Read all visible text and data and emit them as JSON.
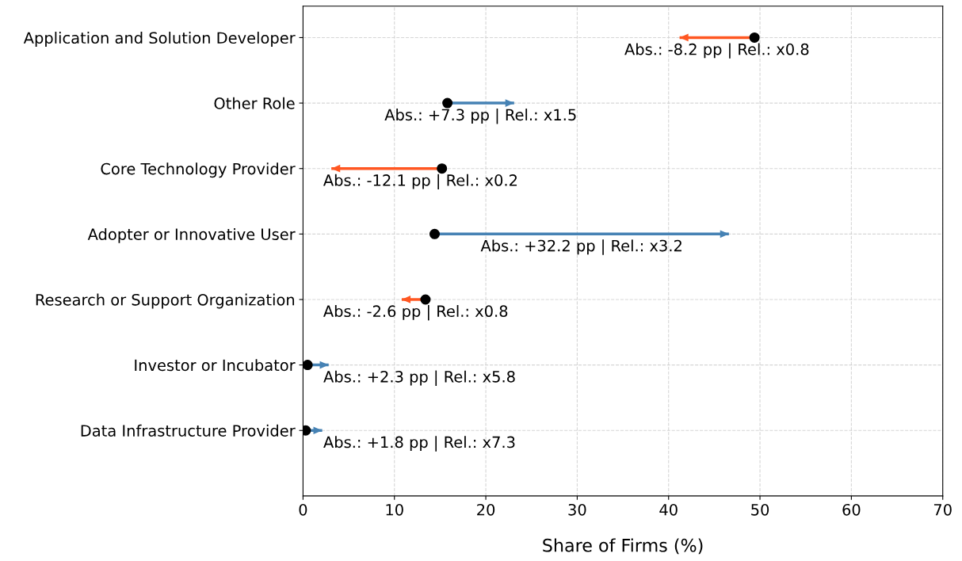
{
  "chart_data": {
    "type": "bar",
    "orientation": "horizontal",
    "xlabel": "Share of Firms (%)",
    "categories": [
      "Application and Solution Developer",
      "Other Role",
      "Core Technology Provider",
      "Adopter or Innovative User",
      "Research or Support Organization",
      "Investor or Incubator",
      "Data Infrastructure Provider"
    ],
    "series": [
      {
        "type": "bar",
        "base": [
          49.4,
          15.8,
          15.2,
          14.4,
          13.4,
          0.5,
          0.3
        ],
        "values": [
          -8.2,
          7.3,
          -12.1,
          32.2,
          -2.6,
          2.3,
          1.8
        ],
        "colors": [
          "#ff5722",
          "#4682b4",
          "#ff5722",
          "#4682b4",
          "#ff5722",
          "#4682b4",
          "#4682b4"
        ],
        "value_labels": [
          "Abs.: -8.2 pp | Rel.: x0.8",
          "Abs.: +7.3 pp | Rel.: x1.5",
          "Abs.: -12.1 pp | Rel.: x0.2",
          "Abs.: +32.2 pp | Rel.: x3.2",
          "Abs.: -2.6 pp | Rel.: x0.8",
          "Abs.: +2.3 pp | Rel.: x5.8",
          "Abs.: +1.8 pp | Rel.: x7.3"
        ]
      },
      {
        "type": "scatter",
        "color": "#000000",
        "marker": "circle",
        "values": [
          49.4,
          15.8,
          15.2,
          14.4,
          13.4,
          0.5,
          0.3
        ]
      }
    ],
    "xlim": [
      0,
      70
    ],
    "xticks": [
      0,
      10,
      20,
      30,
      40,
      50,
      60,
      70
    ],
    "grid": true,
    "line_style": "dashed"
  }
}
